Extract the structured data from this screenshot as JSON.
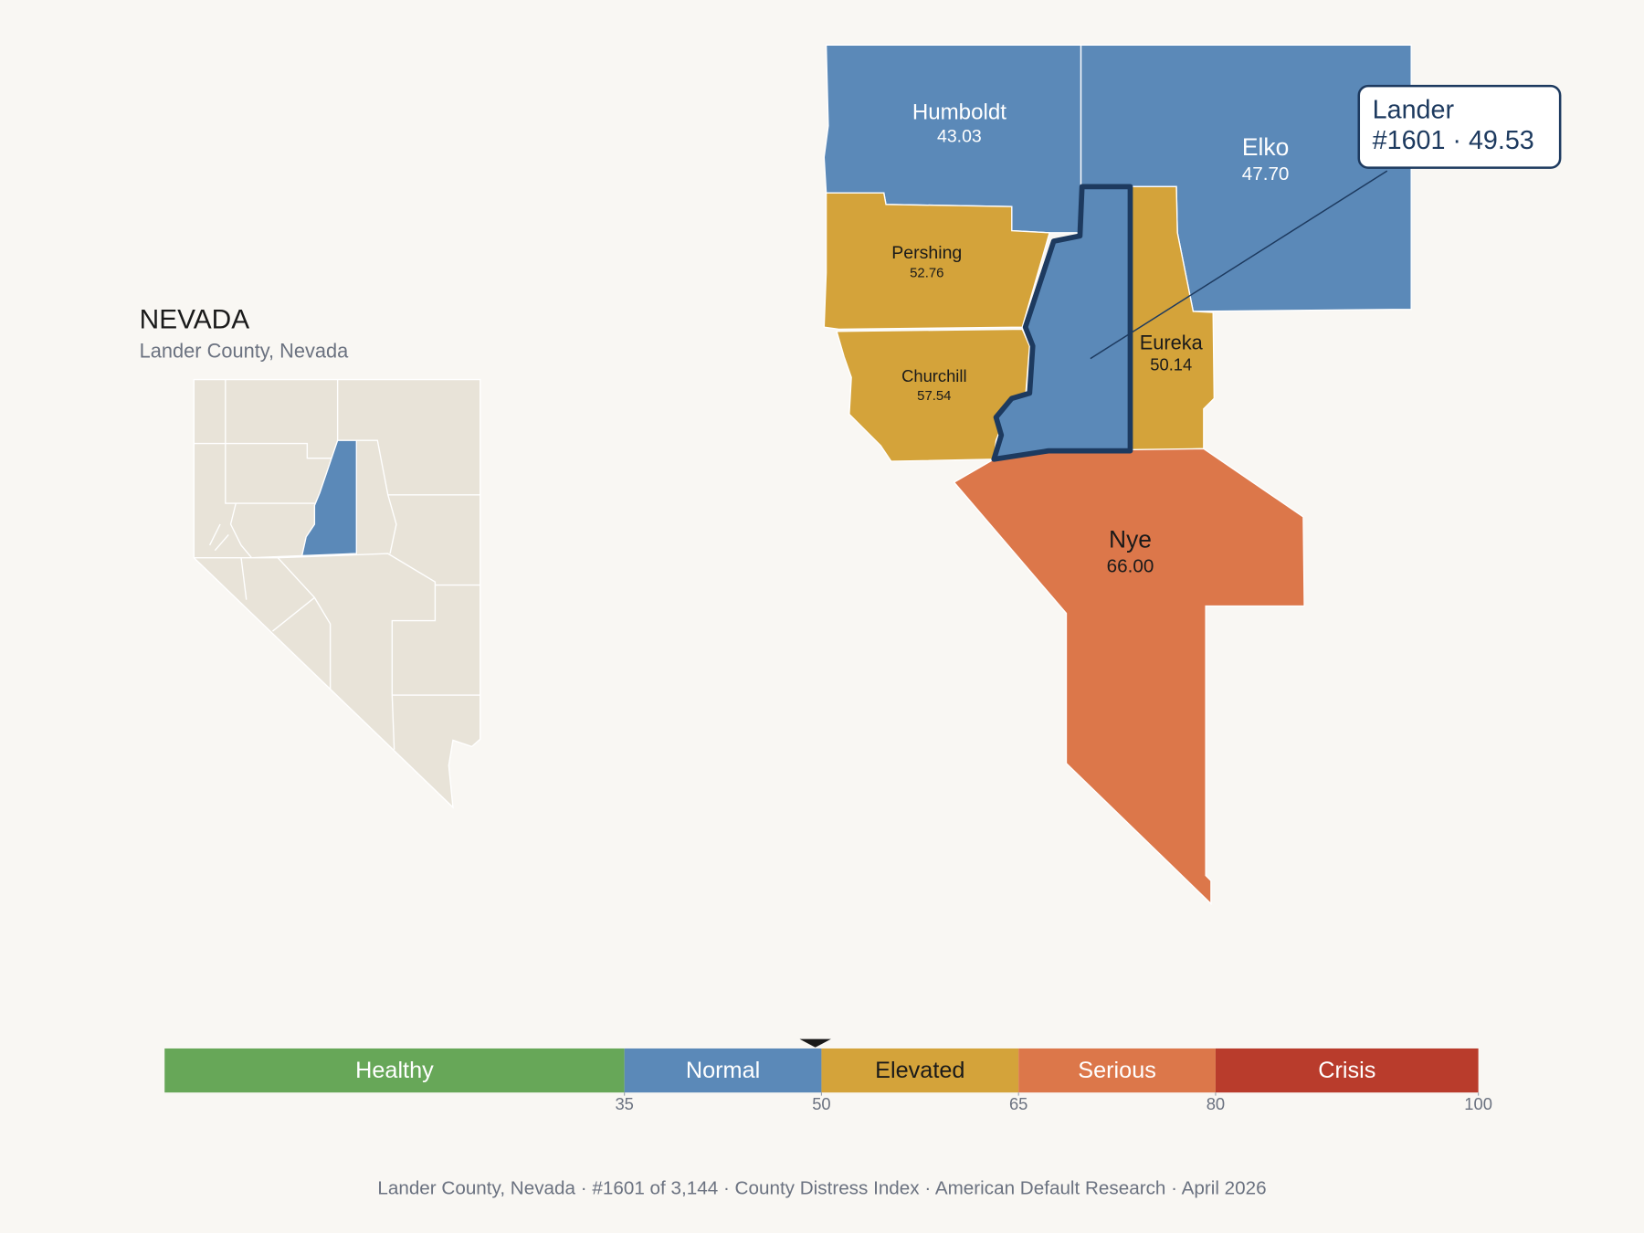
{
  "header": {
    "title": "NEVADA",
    "subtitle": "Lander County, Nevada"
  },
  "focus": {
    "name": "Lander",
    "detail": "#1601 · 49.53",
    "color": "#5b89b8",
    "outline": "#1d3a5f"
  },
  "counties": [
    {
      "name": "Humboldt",
      "score": "43.03",
      "color": "#5b89b8",
      "text_color": "#ffffff"
    },
    {
      "name": "Elko",
      "score": "47.70",
      "color": "#5b89b8",
      "text_color": "#ffffff"
    },
    {
      "name": "Pershing",
      "score": "52.76",
      "color": "#d4a33a",
      "text_color": "#1a1a1a"
    },
    {
      "name": "Churchill",
      "score": "57.54",
      "color": "#d4a33a",
      "text_color": "#1a1a1a"
    },
    {
      "name": "Eureka",
      "score": "50.14",
      "color": "#d4a33a",
      "text_color": "#1a1a1a"
    },
    {
      "name": "Nye",
      "score": "66.00",
      "color": "#dc774a",
      "text_color": "#1a1a1a"
    }
  ],
  "scale": {
    "range": [
      0,
      100
    ],
    "ticks": [
      35,
      50,
      65,
      80,
      100
    ],
    "marker": 49.53,
    "bands": [
      {
        "name": "Healthy",
        "from": 0,
        "to": 35,
        "color": "#67a758",
        "text_color": "#ffffff"
      },
      {
        "name": "Normal",
        "from": 35,
        "to": 50,
        "color": "#5b89b8",
        "text_color": "#ffffff"
      },
      {
        "name": "Elevated",
        "from": 50,
        "to": 65,
        "color": "#d4a33a",
        "text_color": "#1a1a1a"
      },
      {
        "name": "Serious",
        "from": 65,
        "to": 80,
        "color": "#dc774a",
        "text_color": "#ffffff"
      },
      {
        "name": "Crisis",
        "from": 80,
        "to": 100,
        "color": "#b93c2c",
        "text_color": "#ffffff"
      }
    ]
  },
  "footer": "Lander County, Nevada  ·  #1601 of 3,144  ·  County Distress Index  ·  American Default Research  ·  April 2026"
}
